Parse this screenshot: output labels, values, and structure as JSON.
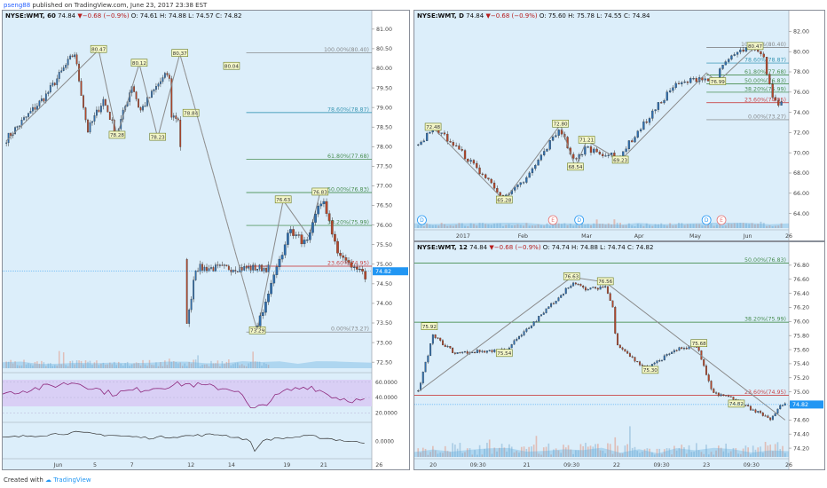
{
  "header": {
    "user": "pseng88",
    "published": "published on TradingView.com, June 23, 2017 23:38 EST"
  },
  "footer": {
    "created": "Created with",
    "brand": "TradingView"
  },
  "colors": {
    "up": "#2e6fb0",
    "down": "#b5472a",
    "fib": "#2e7d32",
    "fibred": "#c62828",
    "bg": "#dceefa"
  },
  "chart_data": [
    {
      "id": "left",
      "type": "candlestick",
      "title": {
        "symbol": "NYSE:WMT, 60",
        "price": "74.84",
        "change": "−0.68 (−0.9%)",
        "o": "O: 74.61",
        "h": "H: 74.88",
        "l": "L: 74.57",
        "c": "C: 74.82"
      },
      "ylim": [
        72.3,
        81.2
      ],
      "yticks": [
        "81.00",
        "80.50",
        "80.00",
        "79.50",
        "79.00",
        "78.50",
        "78.00",
        "77.50",
        "77.00",
        "76.50",
        "76.00",
        "75.50",
        "75.00",
        "74.50",
        "74.00",
        "73.50",
        "73.00",
        "72.50"
      ],
      "xticks": [
        "Jun",
        "5",
        "7",
        "12",
        "14",
        "19",
        "21",
        "26"
      ],
      "price_tag": "74.82",
      "fib_levels": [
        {
          "label": "100.00%(80.40)",
          "value": 80.4
        },
        {
          "label": "78.60%(78.87)",
          "value": 78.87
        },
        {
          "label": "61.80%(77.68)",
          "value": 77.68
        },
        {
          "label": "50.00%(76.83)",
          "value": 76.83
        },
        {
          "label": "38.20%(75.99)",
          "value": 75.99
        },
        {
          "label": "23.60%(74.95)",
          "value": 74.95
        },
        {
          "label": "0.00%(73.27)",
          "value": 73.27
        }
      ],
      "pivots": [
        {
          "label": "80.47",
          "x": 0.26,
          "y": 80.47
        },
        {
          "label": "80.12",
          "x": 0.37,
          "y": 80.12
        },
        {
          "label": "80.37",
          "x": 0.48,
          "y": 80.37
        },
        {
          "label": "80.04",
          "x": 0.62,
          "y": 80.04
        },
        {
          "label": "78.84",
          "x": 0.51,
          "y": 78.84
        },
        {
          "label": "78.28",
          "x": 0.31,
          "y": 78.28
        },
        {
          "label": "78.23",
          "x": 0.42,
          "y": 78.23
        },
        {
          "label": "76.63",
          "x": 0.76,
          "y": 76.63
        },
        {
          "label": "76.83",
          "x": 0.86,
          "y": 76.83
        },
        {
          "label": "73.29",
          "x": 0.69,
          "y": 73.29
        }
      ],
      "rsi_ticks": [
        "60.0000",
        "40.0000",
        "20.0000"
      ],
      "osc_ticks": [
        "0.0000"
      ]
    },
    {
      "id": "right_top",
      "type": "candlestick",
      "title": {
        "symbol": "NYSE:WMT, D",
        "price": "74.84",
        "change": "−0.68 (−0.9%)",
        "o": "O: 75.60",
        "h": "H: 75.78",
        "l": "L: 74.55",
        "c": "C: 74.84"
      },
      "ylim": [
        63,
        83
      ],
      "yticks": [
        "82.00",
        "80.00",
        "78.00",
        "76.00",
        "74.00",
        "72.00",
        "70.00",
        "68.00",
        "66.00",
        "64.00"
      ],
      "xticks": [
        "2017",
        "Feb",
        "Mar",
        "Apr",
        "May",
        "Jun",
        "26"
      ],
      "fib_levels": [
        {
          "label": "100.00%(80.40)",
          "value": 80.4
        },
        {
          "label": "78.60%(78.87)",
          "value": 78.87
        },
        {
          "label": "61.80%(77.68)",
          "value": 77.68
        },
        {
          "label": "50.00%(76.83)",
          "value": 76.83
        },
        {
          "label": "38.20%(75.99)",
          "value": 75.99
        },
        {
          "label": "23.60%(74.95)",
          "value": 74.95
        },
        {
          "label": "0.00%(73.27)",
          "value": 73.27
        }
      ],
      "pivots": [
        {
          "label": "72.48",
          "x": 0.05,
          "y": 72.48
        },
        {
          "label": "65.28",
          "x": 0.24,
          "y": 65.28
        },
        {
          "label": "72.80",
          "x": 0.39,
          "y": 72.8
        },
        {
          "label": "71.21",
          "x": 0.46,
          "y": 71.21
        },
        {
          "label": "68.54",
          "x": 0.43,
          "y": 68.54
        },
        {
          "label": "69.23",
          "x": 0.55,
          "y": 69.23
        },
        {
          "label": "76.99",
          "x": 0.81,
          "y": 76.99
        },
        {
          "label": "80.47",
          "x": 0.91,
          "y": 80.47
        }
      ]
    },
    {
      "id": "right_bottom",
      "type": "candlestick",
      "title": {
        "symbol": "NYSE:WMT, 12",
        "price": "74.84",
        "change": "−0.68 (−0.9%)",
        "o": "O: 74.74",
        "h": "H: 74.88",
        "l": "L: 74.74",
        "c": "C: 74.82"
      },
      "ylim": [
        74.1,
        76.95
      ],
      "yticks": [
        "76.80",
        "76.60",
        "76.40",
        "76.20",
        "76.00",
        "75.80",
        "75.60",
        "75.40",
        "75.20",
        "75.00",
        "74.80",
        "74.60",
        "74.40",
        "74.20"
      ],
      "xticks": [
        "20",
        "09:30",
        "21",
        "09:30",
        "22",
        "09:30",
        "23",
        "09:30",
        "26"
      ],
      "price_tag": "74.82",
      "fib_levels": [
        {
          "label": "50.00%(76.83)",
          "value": 76.83
        },
        {
          "label": "38.20%(75.99)",
          "value": 75.99
        },
        {
          "label": "23.60%(74.95)",
          "value": 74.95
        }
      ],
      "pivots": [
        {
          "label": "75.92",
          "x": 0.04,
          "y": 75.92
        },
        {
          "label": "75.54",
          "x": 0.24,
          "y": 75.54
        },
        {
          "label": "76.63",
          "x": 0.42,
          "y": 76.63
        },
        {
          "label": "76.56",
          "x": 0.51,
          "y": 76.56
        },
        {
          "label": "75.30",
          "x": 0.63,
          "y": 75.3
        },
        {
          "label": "75.68",
          "x": 0.76,
          "y": 75.68
        },
        {
          "label": "74.82",
          "x": 0.86,
          "y": 74.82
        }
      ]
    }
  ]
}
